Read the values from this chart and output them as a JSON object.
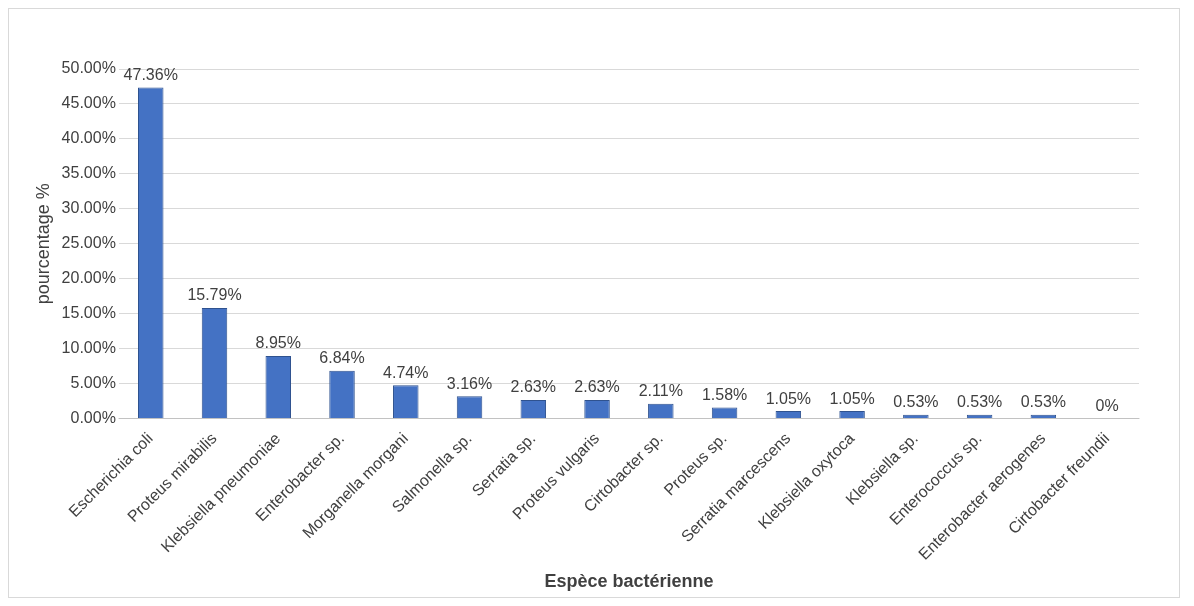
{
  "chart_data": {
    "type": "bar",
    "xlabel": "Espèce bactérienne",
    "ylabel": "pourcentage %",
    "categories": [
      "Escherichia coli",
      "Proteus mirabilis",
      "Klebsiella pneumoniae",
      "Enterobacter sp.",
      "Morganella morgani",
      "Salmonella sp.",
      "Serratia sp.",
      "Proteus vulgaris",
      "Cirtobacter sp.",
      "Proteus sp.",
      "Serratia marcescens",
      "Klebsiella oxytoca",
      "Klebsiella sp.",
      "Enterococcus sp.",
      "Enterobacter aerogenes",
      "Cirtobacter freundii"
    ],
    "values": [
      47.36,
      15.79,
      8.95,
      6.84,
      4.74,
      3.16,
      2.63,
      2.63,
      2.11,
      1.58,
      1.05,
      1.05,
      0.53,
      0.53,
      0.53,
      0
    ],
    "value_labels": [
      "47.36%",
      "15.79%",
      "8.95%",
      "6.84%",
      "4.74%",
      "3.16%",
      "2.63%",
      "2.63%",
      "2.11%",
      "1.58%",
      "1.05%",
      "1.05%",
      "0.53%",
      "0.53%",
      "0.53%",
      "0%"
    ],
    "color": "#4472c4",
    "ylim": [
      0,
      50
    ],
    "yticks": [
      {
        "value": 0,
        "label": "0.00%"
      },
      {
        "value": 5,
        "label": "5.00%"
      },
      {
        "value": 10,
        "label": "10.00%"
      },
      {
        "value": 15,
        "label": "15.00%"
      },
      {
        "value": 20,
        "label": "20.00%"
      },
      {
        "value": 25,
        "label": "25.00%"
      },
      {
        "value": 30,
        "label": "30.00%"
      },
      {
        "value": 35,
        "label": "35.00%"
      },
      {
        "value": 40,
        "label": "40.00%"
      },
      {
        "value": 45,
        "label": "45.00%"
      },
      {
        "value": 50,
        "label": "50.00%"
      }
    ],
    "grid": "y",
    "legend": false
  }
}
